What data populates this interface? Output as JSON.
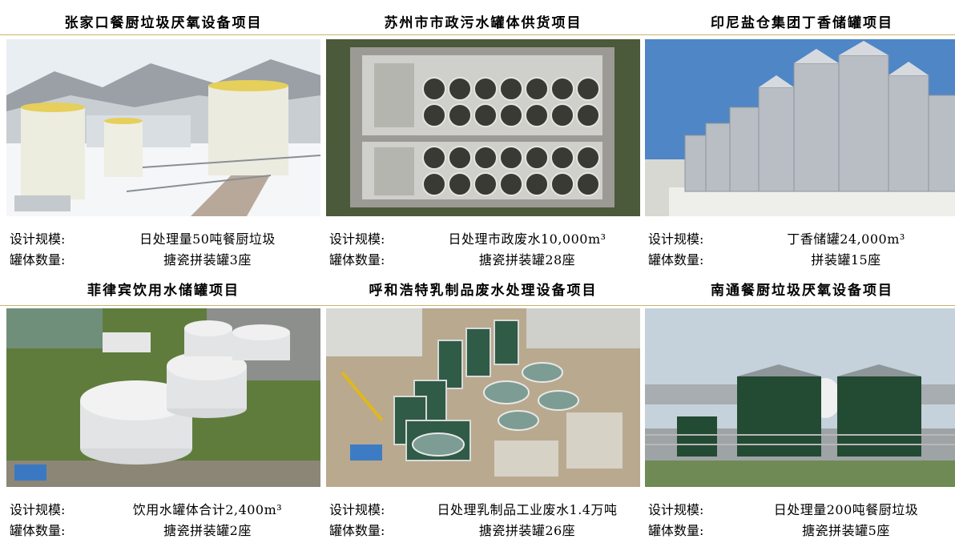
{
  "projects": [
    {
      "title": "张家口餐厨垃圾厌氧设备项目",
      "photo": "snowy-plant-tanks",
      "scale_label": "设计规模:",
      "scale_value": "日处理量50吨餐厨垃圾",
      "count_label": "罐体数量:",
      "count_value": "搪瓷拼装罐3座"
    },
    {
      "title": "苏州市市政污水罐体供货项目",
      "photo": "aerial-tank-grid",
      "scale_label": "设计规模:",
      "scale_value": "日处理市政废水10,000m³",
      "count_label": "罐体数量:",
      "count_value": "搪瓷拼装罐28座"
    },
    {
      "title": "印尼盐仓集团丁香储罐项目",
      "photo": "steel-silos",
      "scale_label": "设计规模:",
      "scale_value": "丁香储罐24,000m³",
      "count_label": "罐体数量:",
      "count_value": "拼装罐15座"
    },
    {
      "title": "菲律宾饮用水储罐项目",
      "photo": "white-storage-tanks",
      "scale_label": "设计规模:",
      "scale_value": "饮用水罐体合计2,400m³",
      "count_label": "罐体数量:",
      "count_value": "搪瓷拼装罐2座"
    },
    {
      "title": "呼和浩特乳制品废水处理设备项目",
      "photo": "green-tanks-construction",
      "scale_label": "设计规模:",
      "scale_value": "日处理乳制品工业废水1.4万吨",
      "count_label": "罐体数量:",
      "count_value": "搪瓷拼装罐26座"
    },
    {
      "title": "南通餐厨垃圾厌氧设备项目",
      "photo": "dark-green-digesters",
      "scale_label": "设计规模:",
      "scale_value": "日处理量200吨餐厨垃圾",
      "count_label": "罐体数量:",
      "count_value": "搪瓷拼装罐5座"
    }
  ],
  "colors": {
    "rule": "#c9b36b",
    "text": "#000000"
  }
}
